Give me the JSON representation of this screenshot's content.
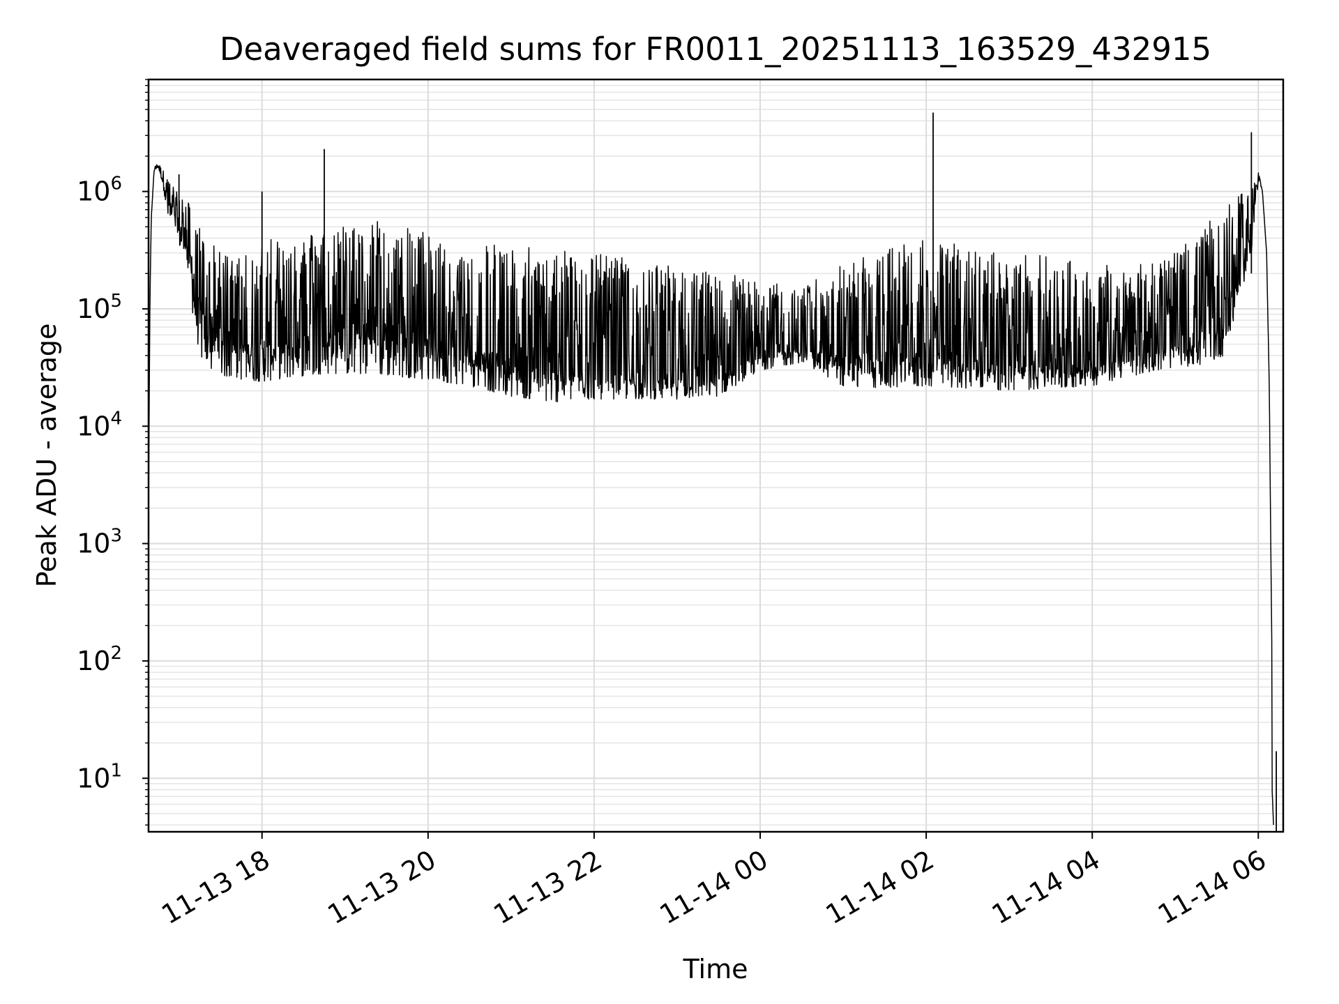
{
  "chart_data": {
    "type": "line",
    "title": "Deaveraged field sums for FR0011_20251113_163529_432915",
    "xlabel": "Time",
    "ylabel": "Peak ADU - average",
    "yscale": "log",
    "xlim": [
      "2025-11-13 16:38",
      "2025-11-14 06:18"
    ],
    "ylim": [
      3.5,
      9000000
    ],
    "grid": "major and minor, light gray",
    "line_color": "#000000",
    "x_ticks": [
      {
        "value": "2025-11-13 18:00",
        "label": "11-13 18"
      },
      {
        "value": "2025-11-13 20:00",
        "label": "11-13 20"
      },
      {
        "value": "2025-11-13 22:00",
        "label": "11-13 22"
      },
      {
        "value": "2025-11-14 00:00",
        "label": "11-14 00"
      },
      {
        "value": "2025-11-14 02:00",
        "label": "11-14 02"
      },
      {
        "value": "2025-11-14 04:00",
        "label": "11-14 04"
      },
      {
        "value": "2025-11-14 06:00",
        "label": "11-14 06"
      }
    ],
    "y_ticks": [
      {
        "value": 10,
        "base": "10",
        "exp": "1"
      },
      {
        "value": 100,
        "base": "10",
        "exp": "2"
      },
      {
        "value": 1000,
        "base": "10",
        "exp": "3"
      },
      {
        "value": 10000,
        "base": "10",
        "exp": "4"
      },
      {
        "value": 100000,
        "base": "10",
        "exp": "5"
      },
      {
        "value": 1000000,
        "base": "10",
        "exp": "6"
      }
    ],
    "series": [
      {
        "x": [
          "2025-11-13 16:38",
          "2025-11-13 16:39",
          "2025-11-13 16:40",
          "2025-11-13 16:42",
          "2025-11-13 16:45",
          "2025-11-13 16:48",
          "2025-11-13 16:52",
          "2025-11-13 16:58",
          "2025-11-13 17:05",
          "2025-11-13 17:10",
          "2025-11-13 17:15",
          "2025-11-13 17:22",
          "2025-11-13 17:30",
          "2025-11-13 17:45",
          "2025-11-13 18:00",
          "2025-11-13 18:20",
          "2025-11-13 18:45",
          "2025-11-13 19:00",
          "2025-11-13 19:30",
          "2025-11-13 20:00",
          "2025-11-13 20:30",
          "2025-11-13 21:00",
          "2025-11-13 21:30",
          "2025-11-13 22:00",
          "2025-11-13 22:30",
          "2025-11-13 23:00",
          "2025-11-13 23:30",
          "2025-11-14 00:00",
          "2025-11-14 00:30",
          "2025-11-14 01:00",
          "2025-11-14 01:30",
          "2025-11-14 02:00",
          "2025-11-14 02:30",
          "2025-11-14 03:00",
          "2025-11-14 03:30",
          "2025-11-14 04:00",
          "2025-11-14 04:30",
          "2025-11-14 05:00",
          "2025-11-14 05:20",
          "2025-11-14 05:35",
          "2025-11-14 05:45",
          "2025-11-14 05:55",
          "2025-11-14 06:00",
          "2025-11-14 06:03",
          "2025-11-14 06:06",
          "2025-11-14 06:08",
          "2025-11-14 06:09",
          "2025-11-14 06:10",
          "2025-11-14 06:10",
          "2025-11-14 06:11"
        ],
        "y": [
          2000,
          120000,
          600000,
          1500000,
          1700000,
          1400000,
          900000,
          600000,
          500000,
          250000,
          120000,
          70000,
          60000,
          55000,
          50000,
          60000,
          70000,
          75000,
          80000,
          70000,
          50000,
          38000,
          30000,
          27000,
          25000,
          24000,
          26000,
          42000,
          45000,
          40000,
          38000,
          40000,
          38000,
          35000,
          33000,
          32000,
          40000,
          48000,
          55000,
          90000,
          200000,
          600000,
          1400000,
          1000000,
          300000,
          20000,
          1000,
          80,
          8,
          4
        ],
        "upper": [
          2000,
          120000,
          600000,
          1600000,
          1800000,
          1600000,
          1300000,
          1000000,
          900000,
          700000,
          500000,
          380000,
          300000,
          320000,
          400000,
          380000,
          500000,
          550000,
          600000,
          450000,
          400000,
          350000,
          320000,
          300000,
          260000,
          230000,
          220000,
          180000,
          150000,
          250000,
          320000,
          400000,
          350000,
          300000,
          280000,
          260000,
          240000,
          300000,
          500000,
          700000,
          900000,
          1100000,
          1500000,
          1000000,
          300000,
          20000,
          1000,
          80,
          8,
          4
        ],
        "lower": [
          2000,
          120000,
          600000,
          1500000,
          1600000,
          1200000,
          600000,
          400000,
          250000,
          90000,
          40000,
          30000,
          27000,
          25000,
          24000,
          26000,
          28000,
          28000,
          27000,
          25000,
          22000,
          18000,
          16000,
          17000,
          17000,
          17000,
          18000,
          30000,
          35000,
          22000,
          21000,
          22000,
          21000,
          20000,
          21000,
          22000,
          27000,
          32000,
          33000,
          40000,
          100000,
          300000,
          1200000,
          1000000,
          300000,
          20000,
          1000,
          80,
          8,
          4
        ]
      }
    ],
    "spikes": [
      {
        "x": "2025-11-13 18:45",
        "y": 2300000
      },
      {
        "x": "2025-11-14 02:05",
        "y": 4700000
      },
      {
        "x": "2025-11-13 17:00",
        "y": 1400000
      },
      {
        "x": "2025-11-13 18:00",
        "y": 1000000
      },
      {
        "x": "2025-11-14 05:55",
        "y": 3200000
      },
      {
        "x": "2025-11-14 06:13",
        "y": 17
      }
    ]
  }
}
